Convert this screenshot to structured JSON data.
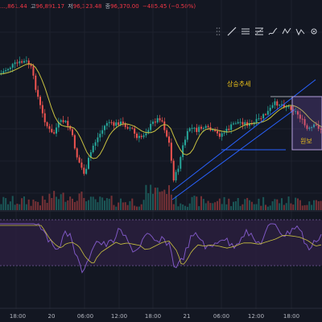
{
  "ohlc": {
    "open": "…,861.44",
    "high_label": "고",
    "high": "96,891.17",
    "low_label": "저",
    "low": "96,323.48",
    "close_label": "종",
    "close": "96,370.00",
    "change": "−485.45 (−0.50%)"
  },
  "toolbar": {
    "tools": [
      "drag-handle-icon",
      "trend-line-icon",
      "horizontal-lines-icon",
      "fib-retracement-icon",
      "brush-icon",
      "pattern-icon",
      "xabcd-icon",
      "settings-icon"
    ]
  },
  "annotations": {
    "uptrend_label": "상승추세",
    "box_label": "원보"
  },
  "time_axis": {
    "ticks": [
      "18:00",
      "20",
      "06:00",
      "12:00",
      "18:00",
      "21",
      "06:00",
      "12:00",
      "18:00"
    ]
  },
  "colors": {
    "background": "#131722",
    "up": "#26a69a",
    "down": "#ef5350",
    "ma": "#c9c140",
    "trendline": "#2962ff",
    "rsi": "#7e57c2",
    "rsi_band": "#2a1f3d"
  }
}
